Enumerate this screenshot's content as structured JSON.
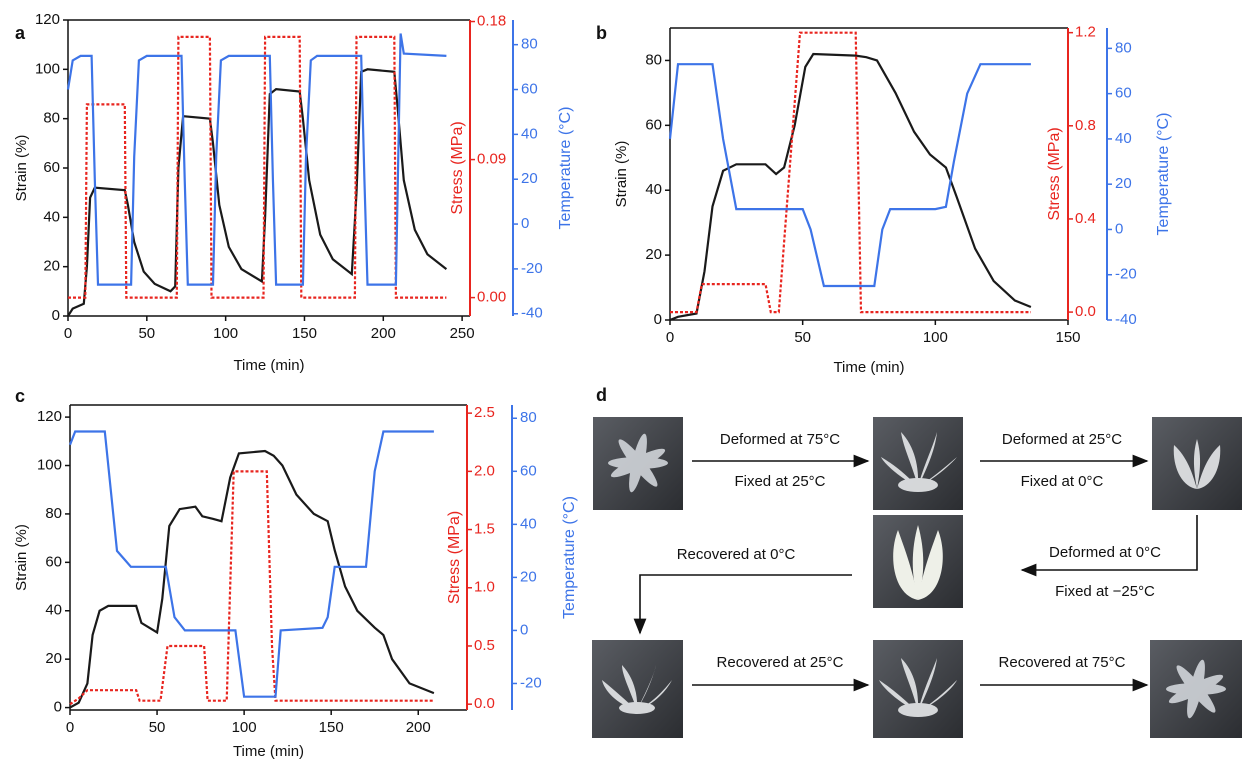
{
  "chart_data": [
    {
      "type": "line",
      "panel_label": "a",
      "xlabel": "Time (min)",
      "ylabel": "Strain (%)",
      "y2label": "Stress (MPa)",
      "y3label": "Temperature (°C)",
      "xlim": [
        0,
        255
      ],
      "xticks": [
        0,
        50,
        100,
        150,
        200,
        250
      ],
      "ylim": [
        0,
        120
      ],
      "yticks": [
        0,
        20,
        40,
        60,
        80,
        100,
        120
      ],
      "y2lim": [
        -0.012,
        0.181
      ],
      "y2ticks": [
        {
          "value": 0,
          "label": "0.00"
        },
        0.09,
        0.18
      ],
      "y3lim": [
        -41,
        91
      ],
      "y3ticks": [
        -40,
        -20,
        0,
        20,
        40,
        60,
        80
      ],
      "series": [
        {
          "color": "#1a1a1a",
          "x": [
            0,
            3,
            10,
            12,
            14,
            17,
            36,
            38,
            42,
            48,
            55,
            65,
            68,
            70,
            73,
            90,
            92,
            96,
            102,
            110,
            123,
            125,
            128,
            132,
            147,
            149,
            153,
            160,
            168,
            180,
            183,
            186,
            190,
            207,
            209,
            213,
            220,
            228,
            240
          ],
          "values": [
            0,
            3,
            5,
            20,
            48,
            52,
            51,
            45,
            30,
            18,
            13,
            10,
            12,
            60,
            81,
            80,
            70,
            45,
            28,
            19,
            14,
            40,
            90,
            92,
            91,
            80,
            55,
            33,
            23,
            17,
            50,
            99,
            100,
            99,
            85,
            55,
            35,
            25,
            19
          ]
        },
        {
          "color": "#e8251f",
          "axis": "y2",
          "dashed": true,
          "x": [
            0,
            11,
            12,
            36,
            37,
            69,
            70,
            90,
            91,
            124,
            125,
            147,
            148,
            182,
            183,
            207,
            208,
            240
          ],
          "values": [
            0,
            0,
            0.126,
            0.126,
            0,
            0,
            0.17,
            0.17,
            0,
            0,
            0.17,
            0.17,
            0,
            0,
            0.17,
            0.17,
            0,
            0
          ]
        },
        {
          "color": "#3d74e8",
          "axis": "y3",
          "x": [
            0,
            3,
            8,
            15,
            17,
            19,
            40,
            42,
            45,
            50,
            72,
            74,
            76,
            92,
            94,
            97,
            102,
            128,
            130,
            132,
            149,
            151,
            154,
            158,
            186,
            188,
            190,
            208,
            210,
            211,
            213,
            240
          ],
          "values": [
            60,
            73,
            75,
            75,
            20,
            -27,
            -27,
            30,
            73,
            75,
            75,
            20,
            -27,
            -27,
            30,
            73,
            75,
            75,
            20,
            -27,
            -27,
            30,
            73,
            75,
            75,
            20,
            -27,
            -27,
            50,
            85,
            76,
            75
          ]
        }
      ]
    },
    {
      "type": "line",
      "panel_label": "b",
      "xlabel": "Time (min)",
      "ylabel": "Strain (%)",
      "y2label": "Stress (MPa)",
      "y3label": "Temperature (°C)",
      "xlim": [
        0,
        150
      ],
      "xticks": [
        0,
        50,
        100,
        150
      ],
      "ylim": [
        0,
        90
      ],
      "yticks": [
        0,
        20,
        40,
        60,
        80
      ],
      "y2lim": [
        -0.034,
        1.22
      ],
      "y2ticks": [
        {
          "value": 0,
          "label": "0.0"
        },
        0.4,
        0.8,
        1.2
      ],
      "y3lim": [
        -40,
        89
      ],
      "y3ticks": [
        -40,
        -20,
        0,
        20,
        40,
        60,
        80
      ],
      "series": [
        {
          "color": "#1a1a1a",
          "x": [
            0,
            3,
            10,
            13,
            16,
            20,
            25,
            36,
            40,
            43,
            47,
            51,
            54,
            70,
            74,
            78,
            85,
            92,
            98,
            104,
            108,
            115,
            122,
            130,
            136
          ],
          "values": [
            0,
            1,
            2,
            15,
            35,
            46,
            48,
            48,
            45,
            47,
            60,
            78,
            82,
            81.5,
            81,
            80,
            70,
            58,
            51,
            47,
            38,
            22,
            12,
            6,
            4
          ]
        },
        {
          "color": "#e8251f",
          "axis": "y2",
          "dashed": true,
          "x": [
            0,
            10,
            12,
            36,
            38,
            41,
            49,
            70,
            72,
            136
          ],
          "values": [
            0,
            0,
            0.12,
            0.12,
            0,
            0,
            1.2,
            1.2,
            0,
            0
          ]
        },
        {
          "color": "#3d74e8",
          "axis": "y3",
          "x": [
            0,
            3,
            5,
            16,
            20,
            25,
            35,
            50,
            53,
            58,
            70,
            77,
            80,
            83,
            100,
            104,
            107,
            112,
            117,
            136
          ],
          "values": [
            40,
            73,
            73,
            73,
            40,
            9,
            9,
            9,
            0,
            -25,
            -25,
            -25,
            0,
            9,
            9,
            10,
            30,
            60,
            73,
            73
          ]
        }
      ]
    },
    {
      "type": "line",
      "panel_label": "c",
      "xlabel": "Time (min)",
      "ylabel": "Strain (%)",
      "y2label": "Stress (MPa)",
      "y3label": "Temperature (°C)",
      "xlim": [
        0,
        228
      ],
      "xticks": [
        0,
        50,
        100,
        150,
        200
      ],
      "ylim": [
        -1,
        125
      ],
      "yticks": [
        0,
        20,
        40,
        60,
        80,
        100,
        120
      ],
      "y2lim": [
        -0.05,
        2.57
      ],
      "y2ticks": [
        {
          "value": 0,
          "label": "0.0"
        },
        0.5,
        {
          "value": 1,
          "label": "1.0"
        },
        1.5,
        {
          "value": 2,
          "label": "2.0"
        },
        2.5
      ],
      "y3lim": [
        -30,
        85
      ],
      "y3ticks": [
        -20,
        0,
        20,
        40,
        60,
        80
      ],
      "series": [
        {
          "color": "#1a1a1a",
          "x": [
            0,
            5,
            10,
            13,
            17,
            22,
            38,
            41,
            50,
            53,
            57,
            63,
            72,
            76,
            82,
            87,
            92,
            97,
            112,
            117,
            122,
            130,
            140,
            148,
            152,
            158,
            165,
            175,
            180,
            185,
            195,
            209
          ],
          "values": [
            0,
            2,
            10,
            30,
            40,
            42,
            42,
            35,
            31,
            45,
            75,
            82,
            83,
            79,
            78,
            77,
            95,
            105,
            106,
            104,
            100,
            88,
            80,
            77,
            65,
            50,
            40,
            33,
            30,
            20,
            10,
            6
          ]
        },
        {
          "color": "#e8251f",
          "axis": "y2",
          "dashed": true,
          "x": [
            0,
            5,
            10,
            38,
            40,
            52,
            56,
            77,
            79,
            90,
            94,
            113,
            116,
            118,
            209
          ],
          "values": [
            0,
            0.05,
            0.12,
            0.12,
            0.03,
            0.03,
            0.5,
            0.5,
            0.03,
            0.03,
            2.0,
            2.0,
            0.5,
            0.03,
            0.03
          ]
        },
        {
          "color": "#3d74e8",
          "axis": "y3",
          "x": [
            0,
            3,
            20,
            27,
            35,
            55,
            60,
            66,
            95,
            100,
            115,
            118,
            121,
            145,
            148,
            152,
            170,
            175,
            180,
            209
          ],
          "values": [
            70,
            75,
            75,
            30,
            24,
            24,
            5,
            0,
            0,
            -25,
            -25,
            -25,
            0,
            1,
            5,
            24,
            24,
            60,
            75,
            75
          ]
        }
      ]
    }
  ],
  "diagram": {
    "panel_label": "d",
    "steps": [
      {
        "above": "Deformed at 75°C",
        "below": "Fixed at 25°C"
      },
      {
        "above": "Deformed at 25°C",
        "below": "Fixed at 0°C"
      },
      {
        "above": "Deformed at 0°C",
        "below": "Fixed at −25°C"
      },
      {
        "above": "Recovered at 0°C"
      },
      {
        "above": "Recovered at 25°C"
      },
      {
        "above": "Recovered at 75°C"
      }
    ]
  }
}
